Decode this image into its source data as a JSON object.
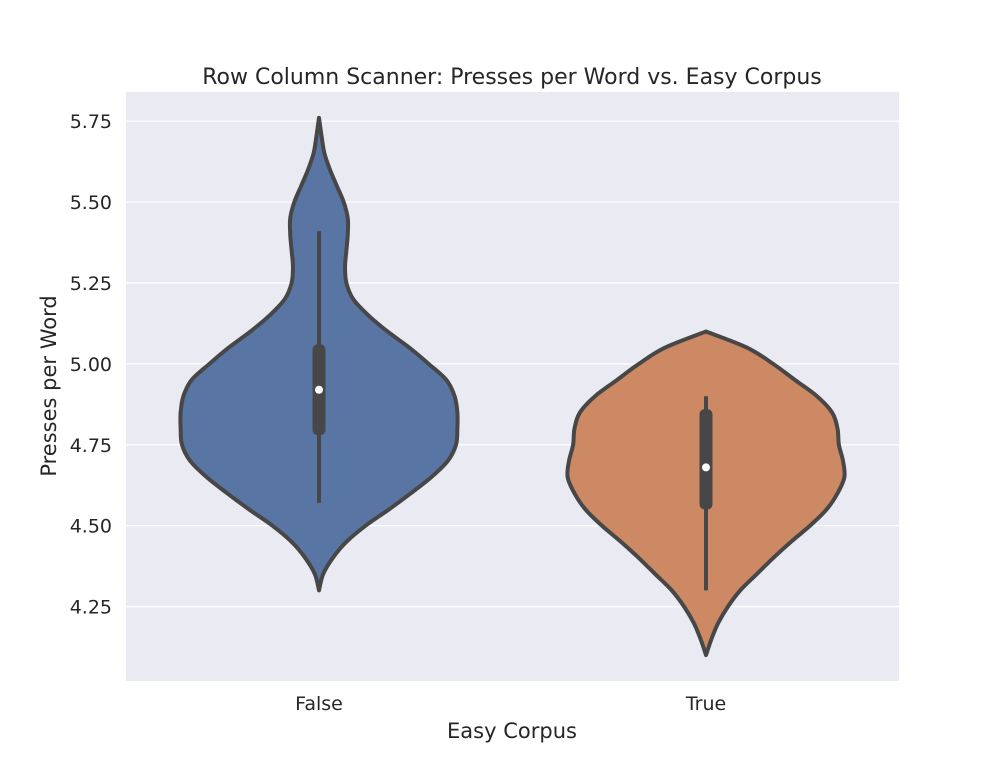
{
  "chart_data": {
    "type": "violin",
    "title": "Row Column Scanner: Presses per Word vs. Easy Corpus",
    "xlabel": "Easy Corpus",
    "ylabel": "Presses per Word",
    "ylim": [
      4.02,
      5.84
    ],
    "yticks": [
      "4.25",
      "4.50",
      "4.75",
      "5.00",
      "5.25",
      "5.50",
      "5.75"
    ],
    "grid": true,
    "categories": [
      "False",
      "True"
    ],
    "series": [
      {
        "category": "False",
        "color": "#5875a4",
        "min": 4.3,
        "max": 5.76,
        "whisker_low": 4.57,
        "whisker_high": 5.41,
        "q1": 4.78,
        "median": 4.92,
        "q3": 5.06,
        "density": [
          [
            4.3,
            0.0
          ],
          [
            4.35,
            0.03
          ],
          [
            4.4,
            0.1
          ],
          [
            4.45,
            0.2
          ],
          [
            4.5,
            0.34
          ],
          [
            4.55,
            0.51
          ],
          [
            4.6,
            0.67
          ],
          [
            4.65,
            0.82
          ],
          [
            4.7,
            0.94
          ],
          [
            4.75,
            1.0
          ],
          [
            4.8,
            1.01
          ],
          [
            4.85,
            1.01
          ],
          [
            4.9,
            0.99
          ],
          [
            4.95,
            0.93
          ],
          [
            5.0,
            0.8
          ],
          [
            5.05,
            0.66
          ],
          [
            5.1,
            0.5
          ],
          [
            5.15,
            0.36
          ],
          [
            5.2,
            0.25
          ],
          [
            5.25,
            0.2
          ],
          [
            5.3,
            0.19
          ],
          [
            5.35,
            0.2
          ],
          [
            5.4,
            0.21
          ],
          [
            5.45,
            0.21
          ],
          [
            5.5,
            0.18
          ],
          [
            5.55,
            0.13
          ],
          [
            5.6,
            0.08
          ],
          [
            5.65,
            0.04
          ],
          [
            5.7,
            0.02
          ],
          [
            5.76,
            0.0
          ]
        ]
      },
      {
        "category": "True",
        "color": "#cc8963",
        "min": 4.1,
        "max": 5.1,
        "whisker_low": 4.3,
        "whisker_high": 4.9,
        "q1": 4.55,
        "median": 4.68,
        "q3": 4.86,
        "density": [
          [
            4.1,
            0.0
          ],
          [
            4.15,
            0.04
          ],
          [
            4.2,
            0.09
          ],
          [
            4.25,
            0.16
          ],
          [
            4.3,
            0.25
          ],
          [
            4.35,
            0.37
          ],
          [
            4.4,
            0.49
          ],
          [
            4.45,
            0.62
          ],
          [
            4.5,
            0.76
          ],
          [
            4.55,
            0.88
          ],
          [
            4.6,
            0.96
          ],
          [
            4.65,
            1.01
          ],
          [
            4.7,
            1.0
          ],
          [
            4.75,
            0.97
          ],
          [
            4.8,
            0.96
          ],
          [
            4.85,
            0.92
          ],
          [
            4.9,
            0.81
          ],
          [
            4.95,
            0.65
          ],
          [
            5.0,
            0.49
          ],
          [
            5.05,
            0.3
          ],
          [
            5.1,
            0.0
          ]
        ]
      }
    ]
  }
}
